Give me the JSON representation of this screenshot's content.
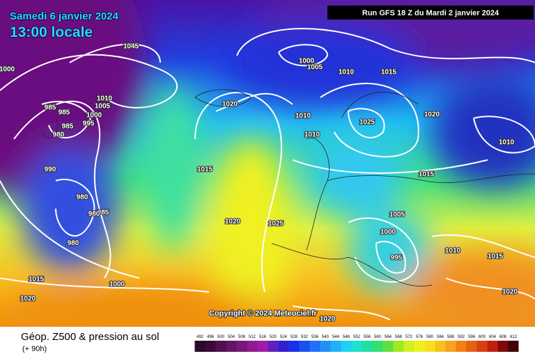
{
  "header": {
    "date": "Samedi 6 janvier 2024",
    "time": "13:00 locale",
    "run": "Run GFS 18 Z du Mardi 2 janvier 2024"
  },
  "copyright": "Copyright © 2024 Meteociel.fr",
  "footer": {
    "title": "Géop. Z500 & pression au sol",
    "subtitle": "(+ 90h)"
  },
  "isobar_labels": [
    1045,
    1000,
    1000,
    1005,
    1010,
    1015,
    1020,
    1010,
    985,
    985,
    1000,
    1005,
    995,
    985,
    980,
    1010,
    1025,
    1020,
    1010,
    1010,
    990,
    1015,
    1015,
    980,
    985,
    980,
    1005,
    1020,
    1025,
    1000,
    1010,
    1015,
    980,
    995,
    1015,
    1000,
    1020,
    1020,
    1020
  ],
  "scale": {
    "labels": [
      492,
      496,
      500,
      504,
      508,
      512,
      516,
      520,
      524,
      528,
      532,
      536,
      540,
      544,
      548,
      552,
      556,
      560,
      564,
      568,
      572,
      576,
      580,
      584,
      588,
      592,
      596,
      600,
      604,
      608,
      612
    ],
    "colors": [
      "#2a0a2a",
      "#3a0a3a",
      "#501050",
      "#641464",
      "#781878",
      "#901a90",
      "#a01ca8",
      "#6020c0",
      "#3020d0",
      "#1a30e8",
      "#1a50f0",
      "#2070f8",
      "#2090f8",
      "#20b0f8",
      "#20d0f0",
      "#20e0d0",
      "#20e0a0",
      "#30e070",
      "#60e040",
      "#a0e820",
      "#d0f020",
      "#f0f020",
      "#f8e020",
      "#f8c020",
      "#f8a020",
      "#f08010",
      "#e86010",
      "#d84010",
      "#c02010",
      "#800808",
      "#400404"
    ]
  }
}
